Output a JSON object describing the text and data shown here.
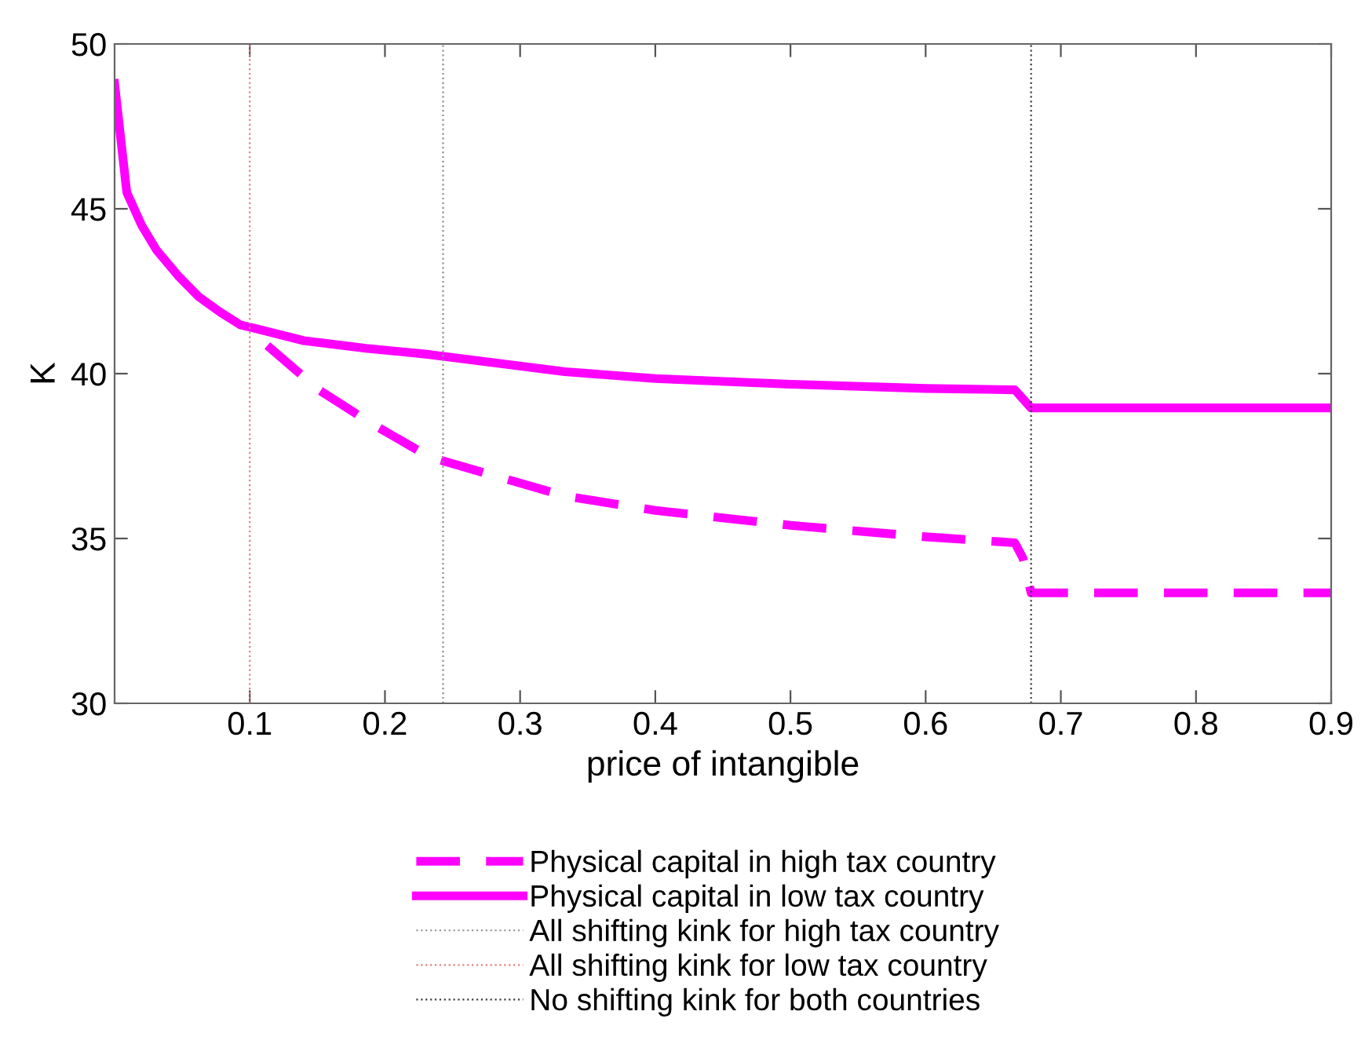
{
  "chart_data": {
    "type": "line",
    "xlabel": "price of intangible",
    "ylabel": "K",
    "series": [
      {
        "name": "Physical capital in high tax country",
        "color": "#ff00ff",
        "line_style": "dashed",
        "x": [
          0.113,
          0.151,
          0.19,
          0.233,
          0.333,
          0.4,
          0.5,
          0.6,
          0.666,
          0.672,
          0.678,
          0.9
        ],
        "values": [
          40.85,
          39.51,
          38.49,
          37.47,
          36.29,
          35.85,
          35.4,
          35.05,
          34.87,
          34.4,
          33.35,
          33.35
        ]
      },
      {
        "name": "Physical capital in low tax country",
        "color": "#ff00ff",
        "line_style": "solid",
        "x": [
          0,
          0.009,
          0.02,
          0.031,
          0.047,
          0.062,
          0.078,
          0.093,
          0.101,
          0.14,
          0.186,
          0.233,
          0.333,
          0.4,
          0.5,
          0.6,
          0.666,
          0.678,
          0.9
        ],
        "values": [
          48.8,
          45.5,
          44.5,
          43.75,
          42.97,
          42.34,
          41.87,
          41.48,
          41.4,
          41.0,
          40.77,
          40.58,
          40.06,
          39.85,
          39.68,
          39.55,
          39.51,
          38.96,
          38.96
        ]
      }
    ],
    "ref_lines": [
      {
        "axis": "x",
        "value": 0.243,
        "label": "All shifting kink for high tax country",
        "color": "#909090",
        "line_style": "dotted"
      },
      {
        "axis": "x",
        "value": 0.1,
        "label": "All shifting kink for low tax country",
        "color": "#e08080",
        "line_style": "dotted"
      },
      {
        "axis": "x",
        "value": 0.678,
        "label": "No shifting kink for both countries",
        "color": "#404040",
        "line_style": "dotted"
      }
    ],
    "xlim": [
      0,
      0.9
    ],
    "xticks": [
      0.1,
      0.2,
      0.3,
      0.4,
      0.5,
      0.6,
      0.7,
      0.8,
      0.9
    ],
    "ylim": [
      30,
      50
    ],
    "yticks": [
      30,
      35,
      40,
      45,
      50
    ],
    "grid": false,
    "legend": "bottom"
  }
}
